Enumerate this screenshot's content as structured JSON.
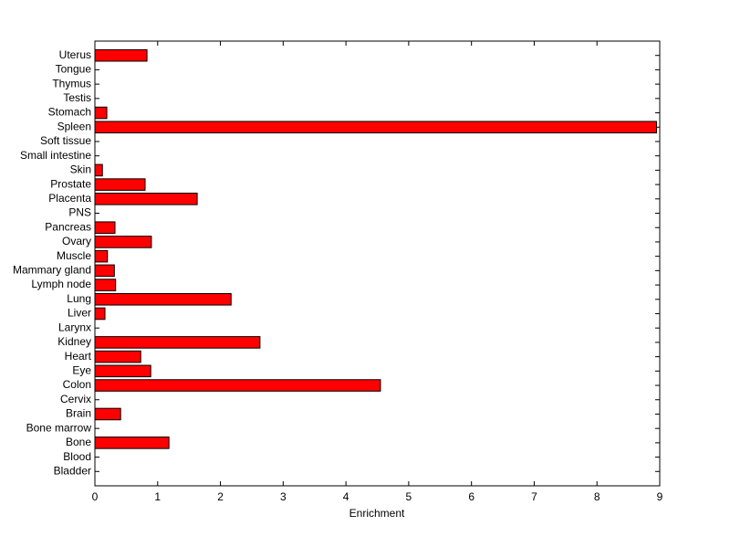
{
  "chart_data": {
    "type": "barh",
    "xlabel": "Enrichment",
    "categories": [
      "Bladder",
      "Blood",
      "Bone",
      "Bone marrow",
      "Brain",
      "Cervix",
      "Colon",
      "Eye",
      "Heart",
      "Kidney",
      "Larynx",
      "Liver",
      "Lung",
      "Lymph node",
      "Mammary gland",
      "Muscle",
      "Ovary",
      "Pancreas",
      "PNS",
      "Placenta",
      "Prostate",
      "Skin",
      "Small intestine",
      "Soft tissue",
      "Spleen",
      "Stomach",
      "Testis",
      "Thymus",
      "Tongue",
      "Uterus"
    ],
    "values": [
      0,
      0,
      1.18,
      0,
      0.41,
      0,
      4.55,
      0.89,
      0.73,
      2.63,
      0,
      0.16,
      2.17,
      0.33,
      0.31,
      0.2,
      0.9,
      0.32,
      0,
      1.63,
      0.8,
      0.12,
      0,
      0,
      8.95,
      0.19,
      0,
      0,
      0,
      0.83
    ],
    "color": "#ff0000",
    "xlim": [
      0,
      9
    ],
    "xticks": [
      0,
      1,
      2,
      3,
      4,
      5,
      6,
      7,
      8,
      9
    ]
  }
}
